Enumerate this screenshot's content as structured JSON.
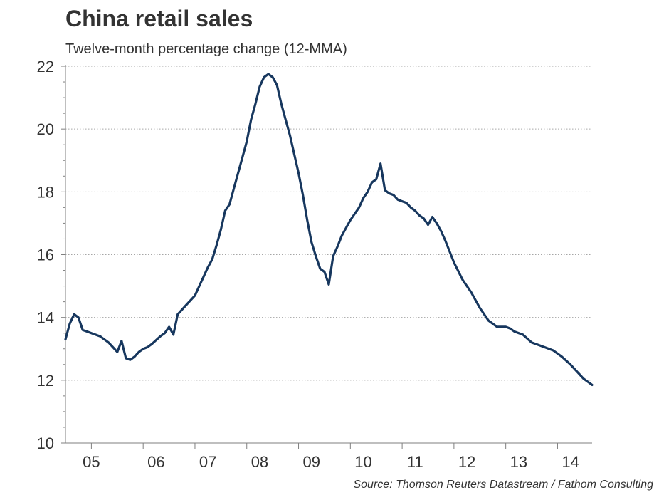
{
  "chart_data": {
    "type": "line",
    "title": "China retail sales",
    "subtitle": "Twelve-month percentage change (12-MMA)",
    "source": "Source: Thomson Reuters Datastream / Fathom Consulting",
    "xlabel": "",
    "ylabel": "",
    "ylim": [
      10,
      22
    ],
    "yticks": [
      10,
      12,
      14,
      16,
      18,
      20,
      22
    ],
    "xlim": [
      2004.5,
      2014.667
    ],
    "xticks": [
      "05",
      "06",
      "07",
      "08",
      "09",
      "10",
      "11",
      "12",
      "13",
      "14"
    ],
    "grid": "horizontal dotted",
    "series": [
      {
        "color": "#17375e",
        "x": [
          2004.5,
          2004.583,
          2004.667,
          2004.75,
          2004.833,
          2005.0,
          2005.167,
          2005.25,
          2005.333,
          2005.417,
          2005.5,
          2005.583,
          2005.667,
          2005.75,
          2005.833,
          2005.917,
          2006.0,
          2006.083,
          2006.167,
          2006.333,
          2006.417,
          2006.5,
          2006.583,
          2006.667,
          2006.833,
          2006.917,
          2007.0,
          2007.083,
          2007.167,
          2007.25,
          2007.333,
          2007.417,
          2007.5,
          2007.583,
          2007.667,
          2007.75,
          2007.833,
          2008.0,
          2008.083,
          2008.167,
          2008.25,
          2008.333,
          2008.417,
          2008.5,
          2008.583,
          2008.667,
          2008.75,
          2008.833,
          2009.0,
          2009.083,
          2009.167,
          2009.25,
          2009.333,
          2009.417,
          2009.5,
          2009.583,
          2009.667,
          2009.75,
          2009.833,
          2010.0,
          2010.167,
          2010.25,
          2010.333,
          2010.417,
          2010.5,
          2010.583,
          2010.667,
          2010.75,
          2010.833,
          2010.917,
          2011.0,
          2011.083,
          2011.167,
          2011.25,
          2011.333,
          2011.417,
          2011.5,
          2011.583,
          2011.667,
          2011.75,
          2011.833,
          2012.0,
          2012.167,
          2012.333,
          2012.5,
          2012.667,
          2012.833,
          2012.917,
          2013.0,
          2013.083,
          2013.167,
          2013.333,
          2013.5,
          2013.667,
          2013.75,
          2013.917,
          2014.0,
          2014.083,
          2014.25,
          2014.333,
          2014.417,
          2014.5,
          2014.583,
          2014.667
        ],
        "y": [
          13.3,
          13.8,
          14.1,
          14.0,
          13.6,
          13.5,
          13.4,
          13.3,
          13.2,
          13.05,
          12.9,
          13.25,
          12.7,
          12.65,
          12.75,
          12.9,
          13.0,
          13.05,
          13.15,
          13.4,
          13.5,
          13.7,
          13.45,
          14.1,
          14.4,
          14.55,
          14.7,
          15.0,
          15.3,
          15.6,
          15.85,
          16.3,
          16.8,
          17.4,
          17.6,
          18.1,
          18.6,
          19.6,
          20.3,
          20.8,
          21.35,
          21.65,
          21.75,
          21.65,
          21.4,
          20.8,
          20.3,
          19.8,
          18.6,
          17.9,
          17.1,
          16.4,
          15.95,
          15.55,
          15.45,
          15.05,
          15.95,
          16.25,
          16.6,
          17.1,
          17.5,
          17.8,
          18.0,
          18.3,
          18.4,
          18.9,
          18.05,
          17.95,
          17.9,
          17.75,
          17.7,
          17.65,
          17.5,
          17.4,
          17.25,
          17.15,
          16.95,
          17.2,
          17.0,
          16.75,
          16.45,
          15.75,
          15.2,
          14.8,
          14.3,
          13.9,
          13.7,
          13.7,
          13.7,
          13.65,
          13.55,
          13.45,
          13.2,
          13.1,
          13.05,
          12.95,
          12.85,
          12.75,
          12.5,
          12.35,
          12.2,
          12.05,
          11.95,
          11.85
        ]
      }
    ]
  }
}
